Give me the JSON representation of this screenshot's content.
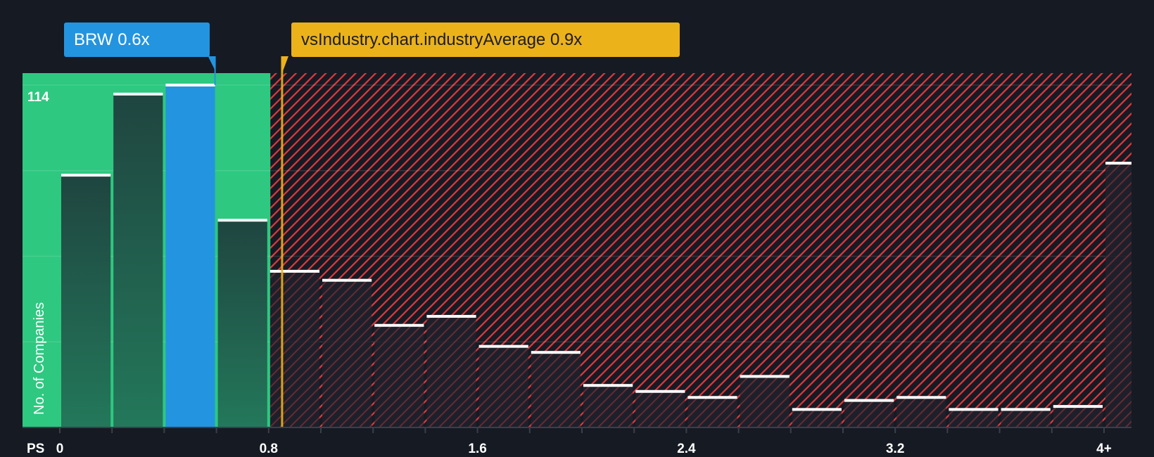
{
  "chart_data": {
    "type": "bar",
    "title": "",
    "xlabel": "PS",
    "ylabel": "No. of Companies",
    "x_tick_labels": [
      "0",
      "0.8",
      "1.6",
      "2.4",
      "3.2",
      "4+"
    ],
    "x_tick_values": [
      0,
      0.8,
      1.6,
      2.4,
      3.2,
      4.0
    ],
    "y_tick_label": "114",
    "ylim": [
      0,
      114
    ],
    "bin_width": 0.2,
    "bins_start": [
      0,
      0.2,
      0.4,
      0.6,
      0.8,
      1.0,
      1.2,
      1.4,
      1.6,
      1.8,
      2.0,
      2.2,
      2.4,
      2.6,
      2.8,
      3.0,
      3.2,
      3.4,
      3.6,
      3.8,
      4.0
    ],
    "values": [
      84,
      111,
      114,
      69,
      52,
      49,
      34,
      37,
      27,
      25,
      14,
      12,
      10,
      17,
      6,
      9,
      10,
      6,
      6,
      7,
      88
    ],
    "highlight_bin": 2,
    "company": {
      "label": "BRW 0.6x",
      "value": 0.6
    },
    "industry": {
      "label": "vsIndustry.chart.industryAverage 0.9x",
      "value": 0.9
    },
    "fair_threshold": 0.85,
    "colors": {
      "background": "#151a23",
      "good": "#2ec880",
      "company": "#2394e0",
      "industry": "#ecb21a",
      "bad": "#e0393e",
      "bar_dark": "#1f4a3f"
    }
  }
}
